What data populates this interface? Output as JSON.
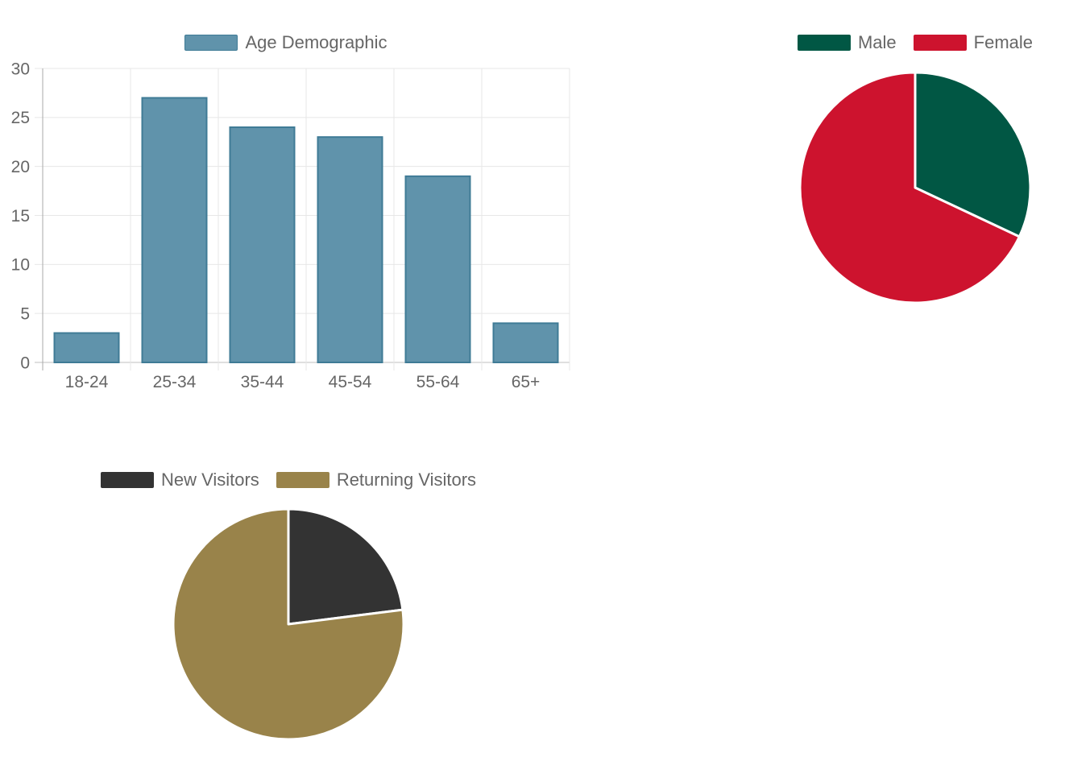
{
  "page": {
    "background": "#ffffff",
    "text_color": "#666666"
  },
  "chart_data": [
    {
      "id": "age-demographic-bar-chart",
      "type": "bar",
      "title": "Age Demographic",
      "legend_position": "top",
      "legend": [
        {
          "label": "Age Demographic",
          "fill": "#6093ab",
          "border": "#3f7b96"
        }
      ],
      "categories": [
        "18-24",
        "25-34",
        "35-44",
        "45-54",
        "55-64",
        "65+"
      ],
      "values": [
        3,
        27,
        24,
        23,
        19,
        4
      ],
      "xlabel": "",
      "ylabel": "",
      "ylim": [
        0,
        30
      ],
      "yticks": [
        0,
        5,
        10,
        15,
        20,
        25,
        30
      ],
      "grid": true,
      "bar_fill": "#6093ab",
      "bar_border": "#3f7b96",
      "grid_color": "#e7e7e7",
      "zero_line_color": "#bfbfbf",
      "axis_line_color": "#a9a9a9",
      "tick_label_color": "#666666"
    },
    {
      "id": "gender-pie-chart",
      "type": "pie",
      "legend_position": "top",
      "slices": [
        {
          "label": "Male",
          "value": 32,
          "color": "#015744"
        },
        {
          "label": "Female",
          "value": 68,
          "color": "#cd132e"
        }
      ],
      "values_unit": "percent",
      "slice_border_color": "#ffffff"
    },
    {
      "id": "visitors-pie-chart",
      "type": "pie",
      "legend_position": "top",
      "slices": [
        {
          "label": "New Visitors",
          "value": 23,
          "color": "#333333"
        },
        {
          "label": "Returning Visitors",
          "value": 77,
          "color": "#99834a"
        }
      ],
      "values_unit": "percent",
      "slice_border_color": "#ffffff"
    }
  ]
}
